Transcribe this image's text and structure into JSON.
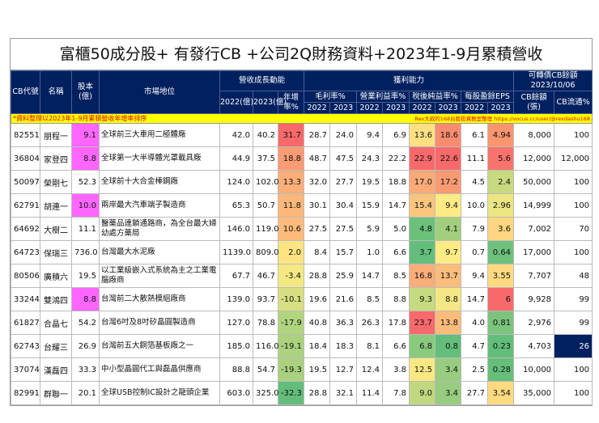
{
  "title": "富櫃50成分股+ 有發行CB +公司2Q財務資料+2023年1-9月累積營收",
  "headers": {
    "cb_code": "CB代號",
    "name": "名稱",
    "capital": "股本(億)",
    "market": "市場地位",
    "revenue_group": "營收成長動能",
    "rev2022": "2022(億)",
    "rev2023": "2023(億)",
    "growth": "年增率%",
    "profit_group": "獲利能力",
    "gross": "毛利率%",
    "operating": "營業利益率%",
    "net": "稅後純益率%",
    "eps": "每股盈餘EPS",
    "y2022": "2022",
    "y2023": "2023",
    "cb_group": "可轉債CB餘額 2023/10/06",
    "cb_balance": "CB餘額(張)",
    "cb_float": "CB流通%"
  },
  "note_left": "*資料整理以2023年1-9月累積營收年增率排序",
  "note_right": "Rex大叔的168台股投資教室整理 https://vocus.cc/user/@rexdashu168",
  "colors": {
    "header": "#002060",
    "note_bg": "#ffff00",
    "note_text": "#e00000",
    "small_capital": "#ff66ff"
  },
  "rows": [
    {
      "code": "82551",
      "name": "朋程一",
      "cap": "9.1",
      "market": "全球前三大車用二極體廠",
      "r22": "42.0",
      "r23": "40.2",
      "g": "31.7",
      "gm22": "28.7",
      "gm23": "24.0",
      "om22": "9.4",
      "om23": "6.9",
      "nm22": "13.6",
      "nm23": "18.6",
      "eps22": "6.1",
      "eps23": "4.94",
      "cb": "8,000",
      "fl": "100",
      "cc": {
        "cap": "#ff66ff",
        "g": "#f8696b",
        "nm22": "#fee082",
        "nm23": "#f98c70",
        "eps23": "#f9956f"
      }
    },
    {
      "code": "36804",
      "name": "家登四",
      "cap": "8.8",
      "market": "全球第一大半導體光罩載具廠",
      "r22": "44.9",
      "r23": "37.5",
      "g": "18.8",
      "gm22": "48.7",
      "gm23": "47.5",
      "om22": "24.3",
      "om23": "22.2",
      "nm22": "22.9",
      "nm23": "22.6",
      "eps22": "11.1",
      "eps23": "5.6",
      "cb": "12,000",
      "fl": "12,000",
      "cc": {
        "cap": "#ff66ff",
        "g": "#f99b73",
        "nm22": "#f8696b",
        "nm23": "#f8696b",
        "eps23": "#f8736d"
      }
    },
    {
      "code": "50097",
      "name": "榮剛七",
      "cap": "52.3",
      "market": "全球前十大合金棒鋼廠",
      "r22": "124.0",
      "r23": "102.0",
      "g": "13.3",
      "gm22": "32.0",
      "gm23": "27.7",
      "om22": "19.5",
      "om23": "18.8",
      "nm22": "17.0",
      "nm23": "17.2",
      "eps22": "4.5",
      "eps23": "2.4",
      "cb": "50,000",
      "fl": "100",
      "cc": {
        "g": "#fbae78",
        "nm22": "#fbaa77",
        "nm23": "#fa9a73",
        "eps23": "#c8da80"
      }
    },
    {
      "code": "62791",
      "name": "胡連一",
      "cap": "10.0",
      "market": "兩岸最大汽車端子製造商",
      "r22": "65.3",
      "r23": "50.7",
      "g": "11.8",
      "gm22": "30.1",
      "gm23": "30.4",
      "om22": "15.9",
      "om23": "14.7",
      "nm22": "15.4",
      "nm23": "9.4",
      "eps22": "10.0",
      "eps23": "2.96",
      "cb": "14,999",
      "fl": "100",
      "cc": {
        "cap": "#ff66ff",
        "g": "#fcb77a",
        "nm22": "#fcc57d",
        "nm23": "#ffeb84",
        "eps23": "#ebe582"
      }
    },
    {
      "code": "64692",
      "name": "大樹二",
      "cap": "11.1",
      "market": "醫藥品連鎖通路商，為全台最大婦幼處方藥局",
      "r22": "146.0",
      "r23": "119.0",
      "g": "10.6",
      "gm22": "27.5",
      "gm23": "27.5",
      "om22": "5.9",
      "om23": "5.0",
      "nm22": "4.8",
      "nm23": "4.1",
      "eps22": "7.9",
      "eps23": "3.6",
      "cb": "7,002",
      "fl": "70",
      "cc": {
        "g": "#fcbb7b",
        "nm22": "#6bc07b",
        "nm23": "#a2cf7e",
        "eps23": "#fed580"
      }
    },
    {
      "code": "64723",
      "name": "保瑞三",
      "cap": "736.0",
      "market": "台灣最大水泥廠",
      "r22": "1139.0",
      "r23": "809.0",
      "g": "2.0",
      "gm22": "8.4",
      "gm23": "15.7",
      "om22": "1.0",
      "om23": "6.6",
      "nm22": "3.7",
      "nm23": "9.7",
      "eps22": "0.7",
      "eps23": "0.64",
      "cb": "17,000",
      "fl": "100",
      "cc": {
        "g": "#fee382",
        "nm22": "#63be7b",
        "nm23": "#ffeb84",
        "eps23": "#6dc17c"
      }
    },
    {
      "code": "80506",
      "name": "廣積六",
      "cap": "19.5",
      "market": "以工業級嵌入式系統為主之工業電腦廠商",
      "r22": "67.7",
      "r23": "46.7",
      "g": "-3.4",
      "gm22": "28.8",
      "gm23": "25.9",
      "om22": "14.7",
      "om23": "8.5",
      "nm22": "16.8",
      "nm23": "13.7",
      "eps22": "9.4",
      "eps23": "3.55",
      "cb": "7,707",
      "fl": "48",
      "cc": {
        "g": "#f4e883",
        "nm22": "#fbad78",
        "nm23": "#fcbd7b",
        "eps23": "#fed980"
      }
    },
    {
      "code": "33244",
      "name": "雙鴻四",
      "cap": "8.8",
      "market": "台灣前二大散熱模組廠商",
      "r22": "139.0",
      "r23": "93.7",
      "g": "-10.1",
      "gm22": "19.6",
      "gm23": "21.6",
      "om22": "8.5",
      "om23": "8.8",
      "nm22": "9.3",
      "nm23": "8.8",
      "eps22": "14.7",
      "eps23": "6",
      "cb": "9,928",
      "fl": "99",
      "cc": {
        "cap": "#ff66ff",
        "g": "#d7df81",
        "nm22": "#c6da80",
        "nm23": "#f5e884",
        "eps23": "#f8696b"
      }
    },
    {
      "code": "61827",
      "name": "合晶七",
      "cap": "54.2",
      "market": "台灣6吋及8吋矽晶圓製造商",
      "r22": "127.0",
      "r23": "78.8",
      "g": "-17.9",
      "gm22": "40.8",
      "gm23": "36.3",
      "om22": "26.3",
      "om23": "17.8",
      "nm22": "23.7",
      "nm23": "13.8",
      "eps22": "4.0",
      "eps23": "0.81",
      "cb": "2,976",
      "fl": "99",
      "cc": {
        "g": "#b1d47f",
        "nm22": "#f8696b",
        "nm23": "#fbbc7b",
        "eps23": "#7ac47c"
      }
    },
    {
      "code": "62743",
      "name": "台耀三",
      "cap": "26.9",
      "market": "台灣前五大銅箔基板廠之一",
      "r22": "185.0",
      "r23": "116.0",
      "g": "-19.1",
      "gm22": "18.4",
      "gm23": "18.3",
      "om22": "8.1",
      "om23": "6.6",
      "nm22": "6.8",
      "nm23": "0.8",
      "eps22": "4.7",
      "eps23": "0.23",
      "cb": "4,703",
      "fl": "26",
      "cc": {
        "g": "#abd27e",
        "nm22": "#8aca7e",
        "nm23": "#63be7b",
        "eps23": "#63be7b",
        "fl": "#002060"
      }
    },
    {
      "code": "37074",
      "name": "漢磊四",
      "cap": "33.3",
      "market": "中小型晶圓代工與磊晶供應商",
      "r22": "88.8",
      "r23": "54.7",
      "g": "-19.3",
      "gm22": "19.5",
      "gm23": "12.7",
      "om22": "12.4",
      "om23": "3.8",
      "nm22": "12.5",
      "nm23": "3.4",
      "eps22": "2.5",
      "eps23": "0.28",
      "cb": "10,000",
      "fl": "100",
      "cc": {
        "g": "#aad27e",
        "nm22": "#f8e883",
        "nm23": "#98cc7e",
        "eps23": "#65bf7b"
      }
    },
    {
      "code": "82991",
      "name": "群聯一",
      "cap": "20.1",
      "market": "全球USB控制IC設計之龍頭企業",
      "r22": "603.0",
      "r23": "325.0",
      "g": "-32.3",
      "gm22": "28.8",
      "gm23": "32.1",
      "om22": "11.4",
      "om23": "7.8",
      "nm22": "9.0",
      "nm23": "3.4",
      "eps22": "27.7",
      "eps23": "3.54",
      "cb": "35,000",
      "fl": "100",
      "cc": {
        "g": "#63be7b",
        "nm22": "#c0d880",
        "nm23": "#98cc7e",
        "eps23": "#feda80"
      }
    }
  ]
}
